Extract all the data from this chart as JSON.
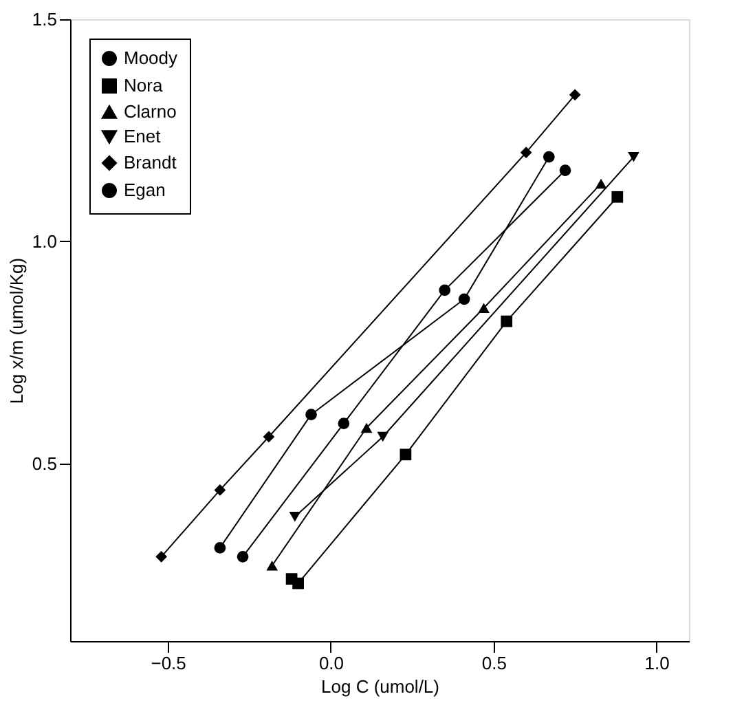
{
  "chart_data": {
    "type": "line",
    "xlabel": "Log C (umol/L)",
    "ylabel": "Log x/m (umol/Kg)",
    "xlim": [
      -0.8,
      1.1
    ],
    "ylim": [
      0.1,
      1.5
    ],
    "xticks": [
      -0.5,
      {
        "value": 0,
        "label": "0.0"
      },
      0.5,
      {
        "value": 1,
        "label": "1.0"
      }
    ],
    "yticks": [
      0.5,
      {
        "value": 1,
        "label": "1.0"
      },
      1.5
    ],
    "grid": false,
    "legend": "top left",
    "line_style": "solid",
    "series": [
      {
        "name": "Moody",
        "color": "#000000",
        "marker": "circle",
        "x": [
          -0.27,
          0.04,
          0.35,
          0.72
        ],
        "values": [
          0.29,
          0.59,
          0.89,
          1.16
        ]
      },
      {
        "name": "Nora",
        "color": "#000000",
        "marker": "square",
        "x": [
          -0.12,
          -0.1,
          0.23,
          0.54,
          0.88
        ],
        "values": [
          0.24,
          0.23,
          0.52,
          0.82,
          1.1
        ]
      },
      {
        "name": "Clarno",
        "color": "#000000",
        "marker": "triangle",
        "x": [
          -0.18,
          0.11,
          0.47,
          0.83
        ],
        "values": [
          0.27,
          0.58,
          0.85,
          1.13
        ]
      },
      {
        "name": "Enet",
        "color": "#000000",
        "marker": "triangle-down",
        "x": [
          -0.11,
          0.16,
          0.93
        ],
        "values": [
          0.38,
          0.56,
          1.19
        ]
      },
      {
        "name": "Brandt",
        "color": "#000000",
        "marker": "diamond",
        "x": [
          -0.52,
          -0.34,
          -0.19,
          0.6,
          0.75
        ],
        "values": [
          0.29,
          0.44,
          0.56,
          1.2,
          1.33
        ]
      },
      {
        "name": "Egan",
        "color": "#000000",
        "marker": "circle",
        "x": [
          -0.34,
          -0.06,
          0.41,
          0.67
        ],
        "values": [
          0.31,
          0.61,
          0.87,
          1.19
        ]
      }
    ]
  }
}
